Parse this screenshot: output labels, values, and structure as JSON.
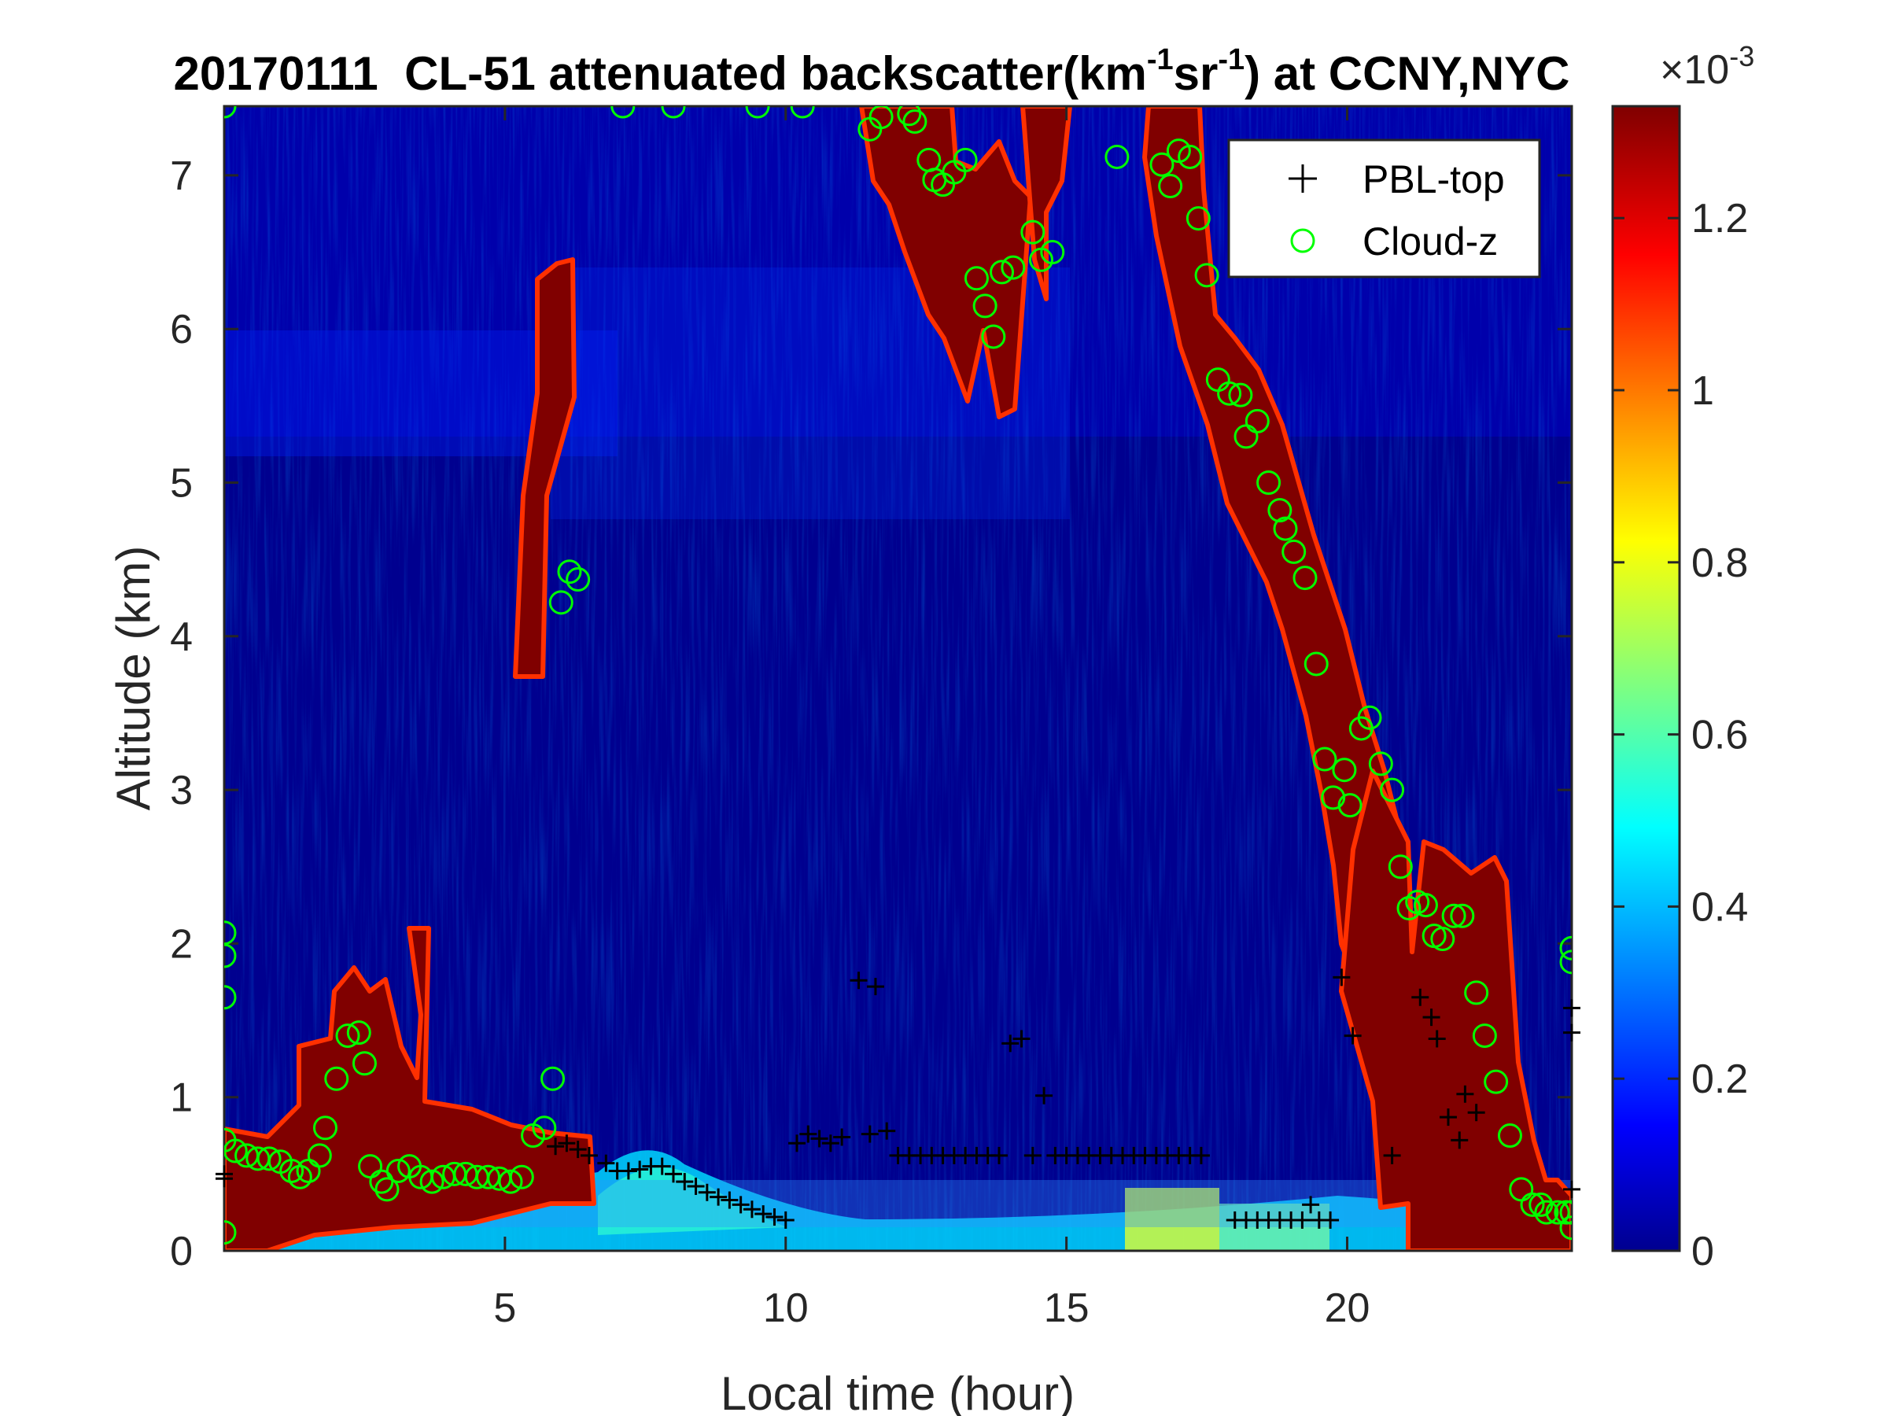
{
  "chart_data": {
    "type": "heatmap",
    "title": {
      "date": "20170111",
      "main": "CL-51 attenuated backscatter(km",
      "sup1": "-1",
      "mid": "sr",
      "sup2": "-1",
      "end": ") at CCNY,NYC"
    },
    "xlabel": "Local time (hour)",
    "ylabel": "Altitude (km)",
    "xlim": [
      0,
      24
    ],
    "ylim": [
      0,
      7.45
    ],
    "x_ticks": [
      5,
      10,
      15,
      20
    ],
    "y_ticks": [
      0,
      1,
      2,
      3,
      4,
      5,
      6,
      7
    ],
    "colorbar": {
      "range": [
        0,
        0.00133
      ],
      "ticks": [
        0,
        0.2,
        0.4,
        0.6,
        0.8,
        1,
        1.2
      ],
      "exponent_label": "×10",
      "exponent": "-3",
      "colormap": [
        "#00008f",
        "#0000ff",
        "#00ffff",
        "#ffff00",
        "#ff0000",
        "#800000"
      ]
    },
    "legend": {
      "placement": "top-right",
      "entries": [
        {
          "label": "PBL-top",
          "marker": "+",
          "color": "#000000"
        },
        {
          "label": "Cloud-z",
          "marker": "o",
          "color": "#00ff00"
        }
      ]
    },
    "series": [
      {
        "name": "PBL-top",
        "points": [
          [
            0,
            0.47
          ],
          [
            0,
            0.5
          ],
          [
            5.9,
            0.68
          ],
          [
            6.1,
            0.7
          ],
          [
            6.3,
            0.66
          ],
          [
            6.5,
            0.62
          ],
          [
            6.8,
            0.57
          ],
          [
            7.0,
            0.52
          ],
          [
            7.2,
            0.52
          ],
          [
            7.4,
            0.53
          ],
          [
            7.6,
            0.55
          ],
          [
            7.8,
            0.55
          ],
          [
            8.0,
            0.5
          ],
          [
            8.2,
            0.45
          ],
          [
            8.4,
            0.42
          ],
          [
            8.6,
            0.38
          ],
          [
            8.8,
            0.35
          ],
          [
            9.0,
            0.33
          ],
          [
            9.2,
            0.3
          ],
          [
            9.4,
            0.27
          ],
          [
            9.6,
            0.24
          ],
          [
            9.8,
            0.22
          ],
          [
            10.0,
            0.2
          ],
          [
            10.2,
            0.7
          ],
          [
            10.4,
            0.76
          ],
          [
            10.6,
            0.73
          ],
          [
            10.8,
            0.7
          ],
          [
            11.0,
            0.74
          ],
          [
            11.3,
            1.76
          ],
          [
            11.5,
            0.76
          ],
          [
            11.6,
            1.72
          ],
          [
            11.8,
            0.78
          ],
          [
            12.0,
            0.62
          ],
          [
            12.2,
            0.62
          ],
          [
            12.4,
            0.62
          ],
          [
            12.6,
            0.62
          ],
          [
            12.8,
            0.62
          ],
          [
            13.0,
            0.62
          ],
          [
            13.2,
            0.62
          ],
          [
            13.4,
            0.62
          ],
          [
            13.6,
            0.62
          ],
          [
            13.8,
            0.62
          ],
          [
            14.0,
            1.35
          ],
          [
            14.2,
            1.38
          ],
          [
            14.4,
            0.62
          ],
          [
            14.6,
            1.01
          ],
          [
            14.8,
            0.62
          ],
          [
            15.0,
            0.62
          ],
          [
            15.2,
            0.62
          ],
          [
            15.4,
            0.62
          ],
          [
            15.6,
            0.62
          ],
          [
            15.8,
            0.62
          ],
          [
            16.0,
            0.62
          ],
          [
            16.2,
            0.62
          ],
          [
            16.4,
            0.62
          ],
          [
            16.6,
            0.62
          ],
          [
            16.8,
            0.62
          ],
          [
            17.0,
            0.62
          ],
          [
            17.2,
            0.62
          ],
          [
            17.4,
            0.62
          ],
          [
            18.0,
            0.2
          ],
          [
            18.2,
            0.2
          ],
          [
            18.4,
            0.2
          ],
          [
            18.6,
            0.2
          ],
          [
            18.8,
            0.2
          ],
          [
            19.0,
            0.2
          ],
          [
            19.2,
            0.2
          ],
          [
            19.35,
            0.3
          ],
          [
            19.5,
            0.2
          ],
          [
            19.7,
            0.2
          ],
          [
            19.9,
            1.78
          ],
          [
            20.1,
            1.4
          ],
          [
            20.8,
            0.62
          ],
          [
            21.3,
            1.65
          ],
          [
            21.5,
            1.52
          ],
          [
            21.6,
            1.38
          ],
          [
            21.8,
            0.87
          ],
          [
            22.0,
            0.72
          ],
          [
            22.1,
            1.02
          ],
          [
            22.3,
            0.9
          ],
          [
            24.0,
            1.58
          ],
          [
            24.0,
            1.42
          ],
          [
            24.0,
            0.4
          ]
        ]
      },
      {
        "name": "Cloud-z",
        "points": [
          [
            0,
            7.45
          ],
          [
            0,
            2.07
          ],
          [
            0,
            1.92
          ],
          [
            0,
            1.65
          ],
          [
            0,
            0.72
          ],
          [
            0,
            0.12
          ],
          [
            0.2,
            0.65
          ],
          [
            0.4,
            0.62
          ],
          [
            0.6,
            0.6
          ],
          [
            0.8,
            0.6
          ],
          [
            1.0,
            0.58
          ],
          [
            1.2,
            0.52
          ],
          [
            1.35,
            0.48
          ],
          [
            1.5,
            0.52
          ],
          [
            1.7,
            0.62
          ],
          [
            1.8,
            0.8
          ],
          [
            2.0,
            1.12
          ],
          [
            2.2,
            1.4
          ],
          [
            2.4,
            1.42
          ],
          [
            2.5,
            1.22
          ],
          [
            2.6,
            0.55
          ],
          [
            2.8,
            0.45
          ],
          [
            2.9,
            0.4
          ],
          [
            3.1,
            0.52
          ],
          [
            3.3,
            0.55
          ],
          [
            3.5,
            0.48
          ],
          [
            3.7,
            0.45
          ],
          [
            3.9,
            0.48
          ],
          [
            4.1,
            0.5
          ],
          [
            4.3,
            0.5
          ],
          [
            4.5,
            0.48
          ],
          [
            4.7,
            0.48
          ],
          [
            4.9,
            0.47
          ],
          [
            5.1,
            0.45
          ],
          [
            5.3,
            0.48
          ],
          [
            5.5,
            0.75
          ],
          [
            5.7,
            0.8
          ],
          [
            5.85,
            1.12
          ],
          [
            6.0,
            4.22
          ],
          [
            6.15,
            4.42
          ],
          [
            6.3,
            4.37
          ],
          [
            7.1,
            7.45
          ],
          [
            8.0,
            7.45
          ],
          [
            9.5,
            7.45
          ],
          [
            10.3,
            7.45
          ],
          [
            11.5,
            7.3
          ],
          [
            11.7,
            7.38
          ],
          [
            12.2,
            7.4
          ],
          [
            12.3,
            7.35
          ],
          [
            12.55,
            7.1
          ],
          [
            12.65,
            6.97
          ],
          [
            12.8,
            6.94
          ],
          [
            13.0,
            7.02
          ],
          [
            13.2,
            7.1
          ],
          [
            13.4,
            6.33
          ],
          [
            13.55,
            6.15
          ],
          [
            13.7,
            5.95
          ],
          [
            13.85,
            6.37
          ],
          [
            14.05,
            6.4
          ],
          [
            14.4,
            6.63
          ],
          [
            14.55,
            6.45
          ],
          [
            14.75,
            6.5
          ],
          [
            15.9,
            7.12
          ],
          [
            16.7,
            7.07
          ],
          [
            16.85,
            6.93
          ],
          [
            17.0,
            7.16
          ],
          [
            17.2,
            7.12
          ],
          [
            17.35,
            6.72
          ],
          [
            17.5,
            6.35
          ],
          [
            17.7,
            5.67
          ],
          [
            17.9,
            5.58
          ],
          [
            18.1,
            5.57
          ],
          [
            18.2,
            5.3
          ],
          [
            18.4,
            5.4
          ],
          [
            18.6,
            5.0
          ],
          [
            18.8,
            4.82
          ],
          [
            18.9,
            4.7
          ],
          [
            19.05,
            4.55
          ],
          [
            19.25,
            4.38
          ],
          [
            19.45,
            3.82
          ],
          [
            19.6,
            3.2
          ],
          [
            19.75,
            2.95
          ],
          [
            19.95,
            3.13
          ],
          [
            20.05,
            2.9
          ],
          [
            20.25,
            3.4
          ],
          [
            20.4,
            3.47
          ],
          [
            20.6,
            3.17
          ],
          [
            20.8,
            3.0
          ],
          [
            20.95,
            2.5
          ],
          [
            21.1,
            2.23
          ],
          [
            21.25,
            2.27
          ],
          [
            21.4,
            2.25
          ],
          [
            21.55,
            2.05
          ],
          [
            21.7,
            2.03
          ],
          [
            21.9,
            2.18
          ],
          [
            22.05,
            2.18
          ],
          [
            22.3,
            1.68
          ],
          [
            22.45,
            1.4
          ],
          [
            22.65,
            1.1
          ],
          [
            22.9,
            0.75
          ],
          [
            23.1,
            0.4
          ],
          [
            23.3,
            0.3
          ],
          [
            23.45,
            0.3
          ],
          [
            23.55,
            0.25
          ],
          [
            23.75,
            0.25
          ],
          [
            23.9,
            0.25
          ],
          [
            24.0,
            1.97
          ],
          [
            24.0,
            1.88
          ],
          [
            24.0,
            0.25
          ],
          [
            24.0,
            0.15
          ]
        ]
      }
    ]
  }
}
